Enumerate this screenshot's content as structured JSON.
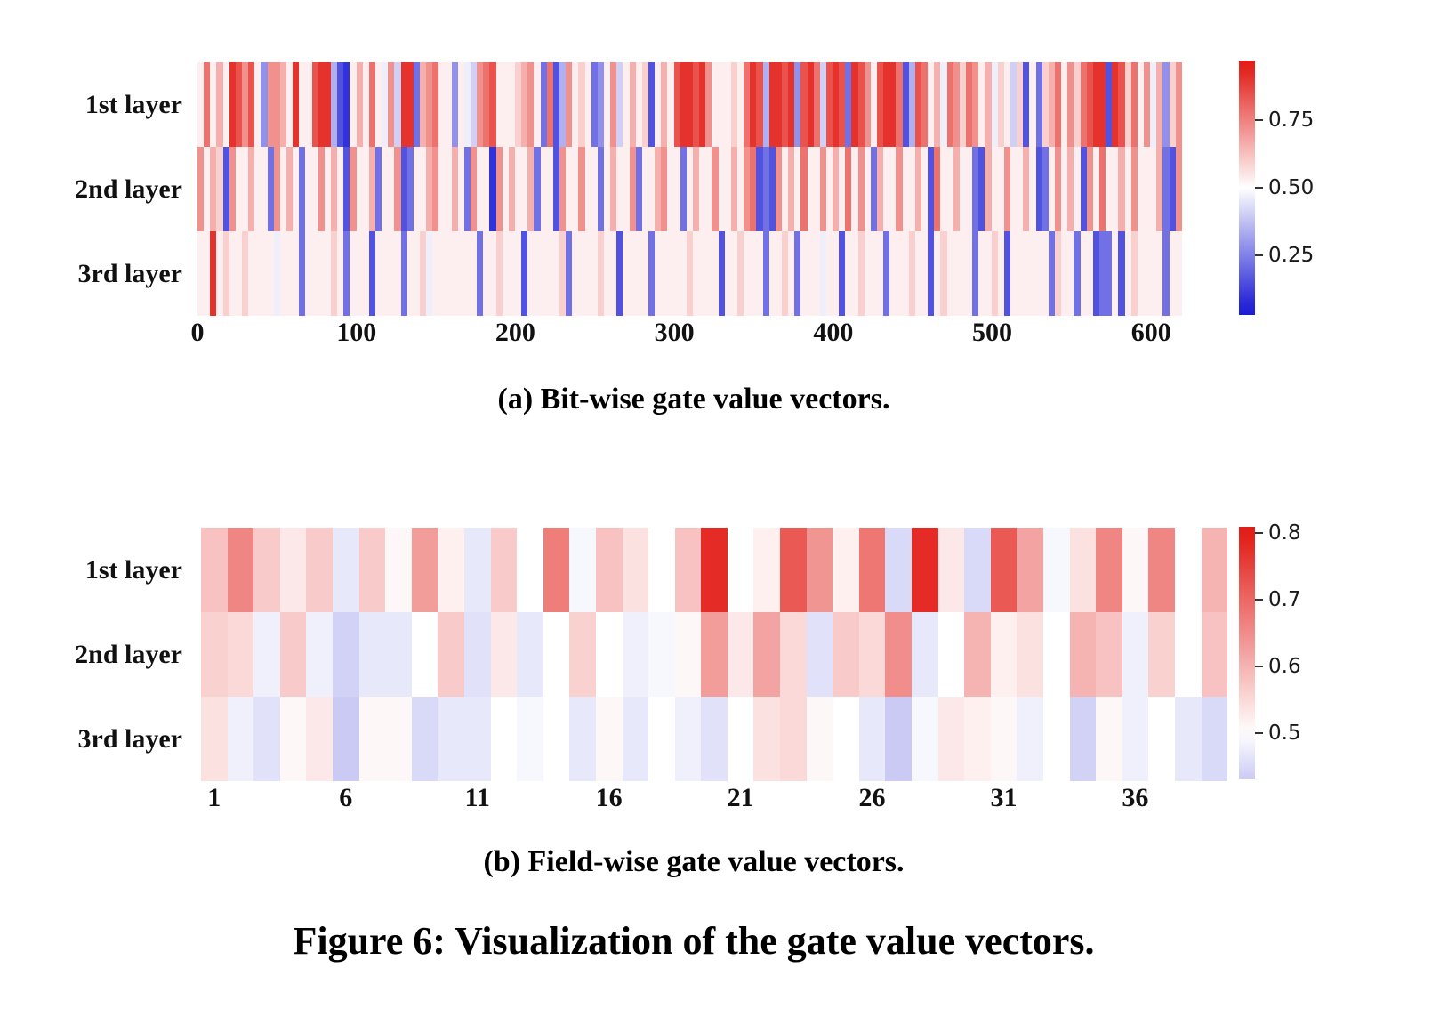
{
  "figure_caption": "Figure 6: Visualization of the gate value vectors.",
  "chart_data": [
    {
      "type": "heatmap",
      "id": "a",
      "title": "(a) Bit-wise gate value vectors.",
      "row_labels": [
        "1st layer",
        "2nd layer",
        "3rd layer"
      ],
      "x_ticks": [
        0,
        100,
        200,
        300,
        400,
        500,
        600
      ],
      "x_max": 620,
      "n_bits": 620,
      "value_encoding": "each hex digit d covers 4 consecutive bit positions; gate value = (d + 0.5) / 16 (8 = near 0.5 white, f = red high, 0 = blue low)",
      "rows": [
        "8c8a8edbd84bba8e88dee5218a8c87b6ee3abc884876bcd8889ab83c25b898348b68a8928a8deedeb88898ced5eede4dec6ded3edb8deec25dc8a7cb9cb8a798692839ac8b9cdee2ed9c8b7a49b",
        "b8a92b88a883b8a8388b8a82b88a388b2388ab88a83b881b8a88a3882b88b8838a88b388ab8838a88b88a8bc232b8a8c88b8a8c8b83a88b88a82c88a8832a88b88a8238b8a82b8c88a8b888a32b",
        "88e89889888878883888898388828888388978888888388988828888893888898828888388888988882889888388983888788288988838889882898888388982888888398838823382898888388"
      ],
      "colormap": {
        "type": "blue-white-red",
        "center": 0.5,
        "span": 0.45
      },
      "colorbar": {
        "vmin": 0.03,
        "vmax": 0.97,
        "tick_labels": [
          "0.75",
          "0.50",
          "0.25"
        ],
        "tick_values": [
          0.75,
          0.5,
          0.25
        ]
      }
    },
    {
      "type": "heatmap",
      "id": "b",
      "title": "(b) Field-wise gate value vectors.",
      "row_labels": [
        "1st layer",
        "2nd layer",
        "3rd layer"
      ],
      "x_ticks": [
        1,
        6,
        11,
        16,
        21,
        26,
        31,
        36
      ],
      "n_cols": 39,
      "rows": [
        [
          0.58,
          0.66,
          0.57,
          0.53,
          0.57,
          0.47,
          0.57,
          0.51,
          0.63,
          0.52,
          0.47,
          0.57,
          0.5,
          0.67,
          0.49,
          0.58,
          0.54,
          0.5,
          0.58,
          0.78,
          0.5,
          0.52,
          0.72,
          0.64,
          0.52,
          0.68,
          0.45,
          0.78,
          0.53,
          0.45,
          0.72,
          0.62,
          0.49,
          0.54,
          0.66,
          0.51,
          0.66,
          0.5,
          0.6
        ],
        [
          0.56,
          0.55,
          0.48,
          0.57,
          0.48,
          0.44,
          0.47,
          0.47,
          0.5,
          0.57,
          0.46,
          0.53,
          0.47,
          0.5,
          0.56,
          0.5,
          0.48,
          0.49,
          0.51,
          0.63,
          0.53,
          0.62,
          0.55,
          0.46,
          0.57,
          0.55,
          0.65,
          0.47,
          0.5,
          0.6,
          0.52,
          0.54,
          0.5,
          0.6,
          0.58,
          0.48,
          0.56,
          0.5,
          0.58
        ],
        [
          0.54,
          0.48,
          0.46,
          0.51,
          0.53,
          0.43,
          0.51,
          0.51,
          0.45,
          0.47,
          0.47,
          0.5,
          0.49,
          0.5,
          0.47,
          0.51,
          0.47,
          0.5,
          0.48,
          0.46,
          0.5,
          0.54,
          0.55,
          0.51,
          0.5,
          0.47,
          0.43,
          0.49,
          0.53,
          0.52,
          0.51,
          0.48,
          0.5,
          0.44,
          0.51,
          0.48,
          0.5,
          0.47,
          0.45
        ]
      ],
      "colormap": {
        "type": "blue-white-red",
        "center": 0.5,
        "span": 0.3
      },
      "colorbar": {
        "vmin": 0.432,
        "vmax": 0.81,
        "tick_labels": [
          "0.8",
          "0.7",
          "0.6",
          "0.5"
        ],
        "tick_values": [
          0.8,
          0.7,
          0.6,
          0.5
        ]
      }
    }
  ],
  "colors": {
    "red_end": "#e21c16",
    "blue_end": "#1c1cd6",
    "mid": "#ffffff"
  }
}
